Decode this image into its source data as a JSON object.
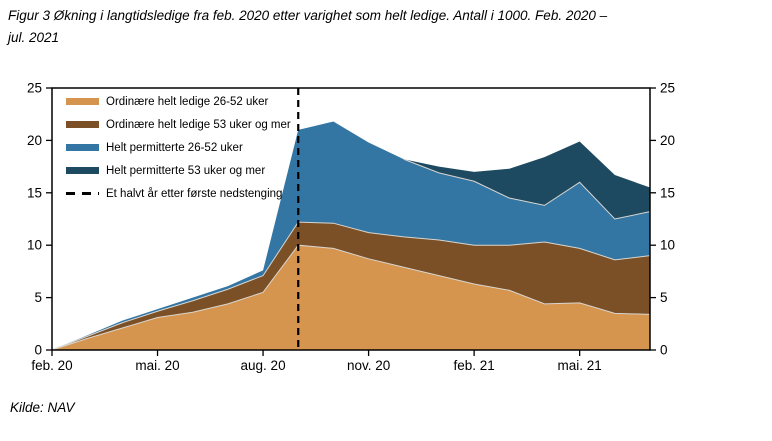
{
  "figure": {
    "title_lines": [
      "Figur 3 Økning i langtidsledige fra feb. 2020 etter varighet som helt ledige. Antall i 1000. Feb. 2020 –",
      "jul. 2021"
    ],
    "source": "Kilde: NAV"
  },
  "chart_data": {
    "type": "area",
    "stacked": true,
    "title": "Økning i langtidsledige fra feb. 2020 etter varighet som helt ledige",
    "xlabel": "",
    "ylabel": "Antall i 1000",
    "x": [
      "feb. 20",
      "mar. 20",
      "apr. 20",
      "mai. 20",
      "jun. 20",
      "jul. 20",
      "aug. 20",
      "sep. 20",
      "okt. 20",
      "nov. 20",
      "des. 20",
      "jan. 21",
      "feb. 21",
      "mar. 21",
      "apr. 21",
      "mai. 21",
      "jun. 21",
      "jul. 21"
    ],
    "x_tick_labels": [
      "feb. 20",
      "mai. 20",
      "aug. 20",
      "nov. 20",
      "feb. 21",
      "mai. 21"
    ],
    "x_tick_indices": [
      0,
      3,
      6,
      9,
      12,
      15
    ],
    "ylim": [
      0,
      25
    ],
    "y_ticks": [
      0,
      5,
      10,
      15,
      20,
      25
    ],
    "y_axis_sides": [
      "left",
      "right"
    ],
    "grid": false,
    "legend_position": "top-left-inside",
    "series": [
      {
        "name": "Ordinære helt ledige 26-52 uker",
        "color": "#D6954E",
        "values": [
          0,
          1.1,
          2.1,
          3.1,
          3.6,
          4.4,
          5.5,
          10.0,
          9.7,
          8.7,
          7.9,
          7.1,
          6.3,
          5.7,
          4.4,
          4.5,
          3.5,
          3.4
        ]
      },
      {
        "name": "Ordinære helt ledige 53 uker og mer",
        "color": "#7B5026",
        "values": [
          0,
          0.2,
          0.5,
          0.6,
          1.1,
          1.4,
          1.6,
          2.2,
          2.4,
          2.5,
          2.9,
          3.4,
          3.7,
          4.3,
          5.9,
          5.2,
          5.1,
          5.6
        ]
      },
      {
        "name": "Helt permitterte 26-52 uker",
        "color": "#3476A3",
        "values": [
          0,
          0.1,
          0.2,
          0.2,
          0.3,
          0.3,
          0.5,
          8.8,
          9.7,
          8.6,
          7.4,
          6.4,
          6.1,
          4.5,
          3.5,
          6.3,
          3.9,
          4.2
        ]
      },
      {
        "name": "Helt permitterte 53 uker og mer",
        "color": "#1E4A61",
        "values": [
          0,
          0,
          0,
          0,
          0,
          0,
          0,
          0,
          0,
          0,
          0,
          0.6,
          0.9,
          2.8,
          4.6,
          3.9,
          4.2,
          2.3
        ]
      }
    ],
    "reference_line": {
      "label": "Et halvt år etter første nedstenging",
      "x_index": 7,
      "x_label": "sep. 20",
      "style": "dashed",
      "color": "#000000"
    },
    "boundary_line_color": "#d8d5d0",
    "frame_color": "#000000"
  }
}
